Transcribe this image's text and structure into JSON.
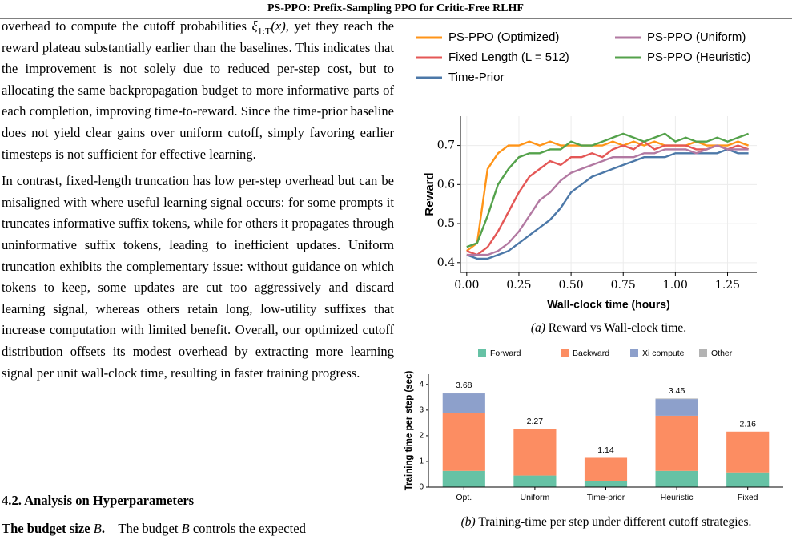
{
  "header": {
    "title": "PS-PPO: Prefix-Sampling PPO for Critic-Free RLHF"
  },
  "paragraphs": [
    [
      {
        "t": "overhead to compute the cutoff probabilities "
      },
      {
        "t": "ξ",
        "italic": true
      },
      {
        "t": "1:T",
        "sub": true
      },
      {
        "t": "(x)",
        "italic": true
      },
      {
        "t": ", yet they reach the reward plateau substantially earlier than the baselines. This indicates that the improvement is not solely due to reduced per-step cost, but to allocating the same backpropagation budget to more informative parts of each completion, improving time-to-reward. Since the time-prior baseline does not yield clear gains over uniform cutoff, simply favoring earlier timesteps is not sufficient for effective learning."
      }
    ],
    [
      {
        "t": "In contrast, fixed-length truncation has low per-step overhead but can be misaligned with where useful learning signal occurs: for some prompts it truncates informative suffix tokens, while for others it propagates through uninformative suffix tokens, leading to inefficient updates. Uniform truncation exhibits the complementary issue: without guidance on which tokens to keep, some updates are cut too aggressively and discard learning signal, whereas others retain long, low-utility suffixes that increase computation with limited benefit. Overall, our optimized cutoff distribution offsets its modest overhead by extracting more learning signal per unit wall-clock time, resulting in faster training progress."
      }
    ]
  ],
  "section": {
    "heading": "4.2. Analysis on Hyperparameters"
  },
  "last_line": [
    {
      "t": "The budget size ",
      "bold": true
    },
    {
      "t": "B",
      "italic": true
    },
    {
      "t": ".",
      "bold": true
    },
    {
      "t": "    The budget "
    },
    {
      "t": "B",
      "italic": true
    },
    {
      "t": " controls the expected"
    }
  ],
  "chart_data": [
    {
      "type": "line",
      "caption": {
        "label": "(a)",
        "text": "Reward vs Wall-clock time."
      },
      "x_label": "Wall-clock time (hours)",
      "y_label": "Reward",
      "x": [
        0,
        0.05,
        0.1,
        0.15,
        0.2,
        0.25,
        0.3,
        0.35,
        0.4,
        0.45,
        0.5,
        0.55,
        0.6,
        0.65,
        0.7,
        0.75,
        0.8,
        0.85,
        0.9,
        0.95,
        1.0,
        1.05,
        1.1,
        1.15,
        1.2,
        1.25,
        1.3,
        1.35
      ],
      "series": [
        {
          "name": "PS-PPO (Optimized)",
          "color": "#ff9418",
          "values": [
            0.43,
            0.45,
            0.64,
            0.68,
            0.7,
            0.7,
            0.71,
            0.7,
            0.71,
            0.7,
            0.7,
            0.7,
            0.7,
            0.7,
            0.71,
            0.7,
            0.71,
            0.7,
            0.71,
            0.7,
            0.7,
            0.7,
            0.71,
            0.7,
            0.7,
            0.7,
            0.71,
            0.7
          ]
        },
        {
          "name": "Fixed Length (L = 512)",
          "color": "#e45756",
          "values": [
            0.43,
            0.42,
            0.44,
            0.48,
            0.53,
            0.58,
            0.62,
            0.64,
            0.66,
            0.65,
            0.67,
            0.67,
            0.68,
            0.67,
            0.69,
            0.7,
            0.69,
            0.71,
            0.69,
            0.7,
            0.7,
            0.7,
            0.69,
            0.69,
            0.7,
            0.69,
            0.7,
            0.69
          ]
        },
        {
          "name": "Time-Prior",
          "color": "#4c78a8",
          "values": [
            0.42,
            0.41,
            0.41,
            0.42,
            0.43,
            0.45,
            0.47,
            0.49,
            0.51,
            0.54,
            0.58,
            0.6,
            0.62,
            0.63,
            0.64,
            0.65,
            0.66,
            0.67,
            0.67,
            0.67,
            0.68,
            0.68,
            0.68,
            0.68,
            0.68,
            0.69,
            0.68,
            0.68
          ]
        },
        {
          "name": "PS-PPO (Uniform)",
          "color": "#b279a2",
          "values": [
            0.42,
            0.42,
            0.42,
            0.43,
            0.45,
            0.48,
            0.52,
            0.56,
            0.58,
            0.61,
            0.63,
            0.64,
            0.65,
            0.66,
            0.67,
            0.67,
            0.67,
            0.68,
            0.68,
            0.69,
            0.69,
            0.69,
            0.68,
            0.69,
            0.7,
            0.69,
            0.69,
            0.69
          ]
        },
        {
          "name": "PS-PPO (Heuristic)",
          "color": "#54a24b",
          "values": [
            0.44,
            0.45,
            0.52,
            0.6,
            0.64,
            0.67,
            0.68,
            0.68,
            0.69,
            0.69,
            0.71,
            0.7,
            0.7,
            0.71,
            0.72,
            0.73,
            0.72,
            0.71,
            0.72,
            0.73,
            0.71,
            0.72,
            0.71,
            0.71,
            0.72,
            0.71,
            0.72,
            0.73
          ]
        }
      ],
      "xlim": [
        -0.03,
        1.39
      ],
      "xticks": [
        {
          "value": 0,
          "label": "0.00"
        },
        {
          "value": 0.25,
          "label": "0.25"
        },
        {
          "value": 0.5,
          "label": "0.50"
        },
        {
          "value": 0.75,
          "label": "0.75"
        },
        {
          "value": 1,
          "label": "1.00"
        },
        {
          "value": 1.25,
          "label": "1.25"
        }
      ],
      "ylim": [
        0.375,
        0.775
      ],
      "yticks": [
        0.4,
        0.5,
        0.6,
        0.7
      ],
      "grid": true
    },
    {
      "type": "stacked_bar",
      "caption": {
        "label": "(b)",
        "text": "Training-time per step under different cutoff strategies."
      },
      "y_label": "Training time per step (sec)",
      "categories": [
        "Opt.",
        "Uniform",
        "Time-prior",
        "Heuristic",
        "Fixed"
      ],
      "series": [
        {
          "name": "Forward",
          "color": "#66c2a5",
          "values": [
            0.63,
            0.45,
            0.25,
            0.63,
            0.57
          ]
        },
        {
          "name": "Backward",
          "color": "#fc8d62",
          "values": [
            2.27,
            1.82,
            0.89,
            2.15,
            1.59
          ]
        },
        {
          "name": "Xi compute",
          "color": "#8da0cb",
          "values": [
            0.75,
            0,
            0,
            0.65,
            0
          ]
        },
        {
          "name": "Other",
          "color": "#b3b3b3",
          "values": [
            0.03,
            0,
            0,
            0.02,
            0
          ]
        }
      ],
      "totals": [
        3.68,
        2.27,
        1.14,
        3.45,
        2.16
      ],
      "ylim": [
        0,
        4.4
      ],
      "yticks": [
        0,
        1,
        2,
        3,
        4
      ],
      "grid": false
    }
  ]
}
